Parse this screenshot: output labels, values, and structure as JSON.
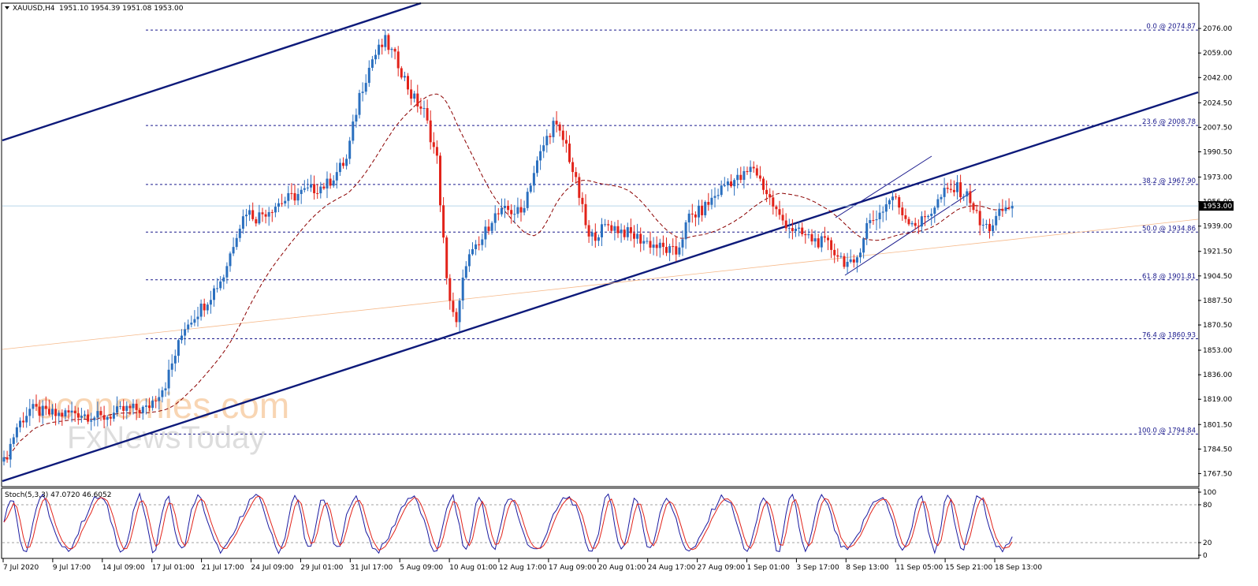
{
  "chart_data": {
    "type": "candlestick",
    "header": {
      "symbol_timeframe": "XAUUSD,H4",
      "ohlc": "1951.10 1954.39 1951.08 1953.00"
    },
    "ylim": [
      1759.0,
      2093.0
    ],
    "price_ticks": [
      "2076.00",
      "2059.00",
      "2042.00",
      "2024.50",
      "2007.50",
      "1990.50",
      "1973.00",
      "1956.00",
      "1939.00",
      "1921.50",
      "1904.50",
      "1887.50",
      "1870.50",
      "1853.00",
      "1836.00",
      "1819.00",
      "1801.50",
      "1784.50",
      "1767.50"
    ],
    "current_price": "1953.00",
    "fib_levels": [
      {
        "label": "0.0 @ 2074.87",
        "value": 2074.87
      },
      {
        "label": "23.6 @ 2008.78",
        "value": 2008.78
      },
      {
        "label": "38.2 @ 1967.90",
        "value": 1967.9
      },
      {
        "label": "50.0 @ 1934.86",
        "value": 1934.86
      },
      {
        "label": "61.8 @ 1901.81",
        "value": 1901.81
      },
      {
        "label": "76.4 @ 1860.93",
        "value": 1860.93
      },
      {
        "label": "100.0 @ 1794.84",
        "value": 1794.84
      }
    ],
    "time_labels": [
      "7 Jul 2020",
      "9 Jul 17:00",
      "14 Jul 09:00",
      "17 Jul 01:00",
      "21 Jul 17:00",
      "24 Jul 09:00",
      "29 Jul 01:00",
      "31 Jul 17:00",
      "5 Aug 09:00",
      "10 Aug 01:00",
      "12 Aug 17:00",
      "17 Aug 09:00",
      "20 Aug 01:00",
      "24 Aug 17:00",
      "27 Aug 09:00",
      "1 Sep 01:00",
      "3 Sep 17:00",
      "8 Sep 13:00",
      "11 Sep 05:00",
      "15 Sep 21:00",
      "18 Sep 13:00"
    ],
    "price_path": [
      {
        "i": 0,
        "p": 1775
      },
      {
        "i": 4,
        "p": 1800
      },
      {
        "i": 8,
        "p": 1812
      },
      {
        "i": 16,
        "p": 1808
      },
      {
        "i": 22,
        "p": 1810
      },
      {
        "i": 30,
        "p": 1806
      },
      {
        "i": 38,
        "p": 1812
      },
      {
        "i": 44,
        "p": 1812
      },
      {
        "i": 50,
        "p": 1830
      },
      {
        "i": 56,
        "p": 1870
      },
      {
        "i": 62,
        "p": 1885
      },
      {
        "i": 68,
        "p": 1905
      },
      {
        "i": 72,
        "p": 1935
      },
      {
        "i": 75,
        "p": 1950
      },
      {
        "i": 78,
        "p": 1945
      },
      {
        "i": 85,
        "p": 1955
      },
      {
        "i": 92,
        "p": 1962
      },
      {
        "i": 100,
        "p": 1968
      },
      {
        "i": 106,
        "p": 1985
      },
      {
        "i": 110,
        "p": 2030
      },
      {
        "i": 114,
        "p": 2055
      },
      {
        "i": 118,
        "p": 2067
      },
      {
        "i": 122,
        "p": 2052
      },
      {
        "i": 126,
        "p": 2030
      },
      {
        "i": 130,
        "p": 2018
      },
      {
        "i": 134,
        "p": 1985
      },
      {
        "i": 137,
        "p": 1900
      },
      {
        "i": 140,
        "p": 1870
      },
      {
        "i": 143,
        "p": 1915
      },
      {
        "i": 147,
        "p": 1925
      },
      {
        "i": 151,
        "p": 1945
      },
      {
        "i": 156,
        "p": 1950
      },
      {
        "i": 160,
        "p": 1948
      },
      {
        "i": 163,
        "p": 1970
      },
      {
        "i": 167,
        "p": 1995
      },
      {
        "i": 170,
        "p": 2010
      },
      {
        "i": 174,
        "p": 1995
      },
      {
        "i": 178,
        "p": 1960
      },
      {
        "i": 181,
        "p": 1930
      },
      {
        "i": 187,
        "p": 1940
      },
      {
        "i": 192,
        "p": 1935
      },
      {
        "i": 197,
        "p": 1930
      },
      {
        "i": 202,
        "p": 1925
      },
      {
        "i": 208,
        "p": 1920
      },
      {
        "i": 212,
        "p": 1945
      },
      {
        "i": 216,
        "p": 1950
      },
      {
        "i": 220,
        "p": 1960
      },
      {
        "i": 224,
        "p": 1970
      },
      {
        "i": 228,
        "p": 1972
      },
      {
        "i": 232,
        "p": 1980
      },
      {
        "i": 236,
        "p": 1962
      },
      {
        "i": 240,
        "p": 1945
      },
      {
        "i": 245,
        "p": 1935
      },
      {
        "i": 250,
        "p": 1930
      },
      {
        "i": 255,
        "p": 1926
      },
      {
        "i": 260,
        "p": 1915
      },
      {
        "i": 263,
        "p": 1910
      },
      {
        "i": 267,
        "p": 1940
      },
      {
        "i": 271,
        "p": 1948
      },
      {
        "i": 275,
        "p": 1960
      },
      {
        "i": 279,
        "p": 1945
      },
      {
        "i": 283,
        "p": 1940
      },
      {
        "i": 287,
        "p": 1950
      },
      {
        "i": 291,
        "p": 1962
      },
      {
        "i": 295,
        "p": 1965
      },
      {
        "i": 299,
        "p": 1958
      },
      {
        "i": 302,
        "p": 1940
      },
      {
        "i": 305,
        "p": 1938
      },
      {
        "i": 309,
        "p": 1950
      },
      {
        "i": 312,
        "p": 1953
      }
    ],
    "stoch": {
      "label": "Stoch(5,3,3) 47.0720 46.6052",
      "levels": [
        80,
        20
      ],
      "ticks": [
        "100",
        "80",
        "20",
        "0"
      ]
    }
  },
  "watermark": {
    "line1": "economies.com",
    "line2": "FxNewsToday"
  }
}
